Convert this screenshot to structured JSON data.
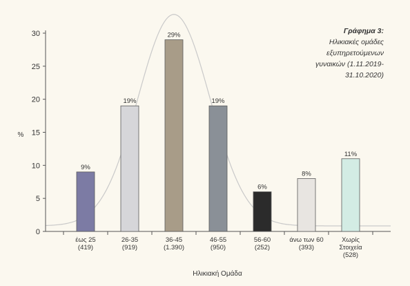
{
  "chart_data": {
    "type": "bar",
    "title": "Γράφημα 3:",
    "subtitle_lines": [
      "Ηλικιακές ομάδες",
      "εξυπηρετούμενων",
      "γυναικών (1.11.2019-",
      "31.10.2020)"
    ],
    "xlabel": "Ηλικιακή Ομάδα",
    "ylabel": "%",
    "ylim": [
      0,
      30
    ],
    "yticks": [
      0,
      5,
      10,
      15,
      20,
      25,
      30
    ],
    "categories": [
      {
        "label": "έως 25",
        "count": "(419)"
      },
      {
        "label": "26-35",
        "count": "(919)"
      },
      {
        "label": "36-45",
        "count": "(1.390)"
      },
      {
        "label": "46-55",
        "count": "(950)"
      },
      {
        "label": "56-60",
        "count": "(252)"
      },
      {
        "label": "άνω των 60",
        "count": "(393)"
      },
      {
        "label": "Χωρίς Στοιχεία",
        "count": "(528)"
      }
    ],
    "values": [
      9,
      19,
      29,
      19,
      6,
      8,
      11
    ],
    "data_labels": [
      "9%",
      "19%",
      "29%",
      "19%",
      "6%",
      "8%",
      "11%"
    ],
    "bar_colors": [
      "#7c7ba4",
      "#d6d6d9",
      "#a89c88",
      "#8a9097",
      "#2b2b2b",
      "#e8e5e1",
      "#d3ece4"
    ],
    "curve_color": "#c9c9c9",
    "grid": false,
    "legend": "none"
  }
}
